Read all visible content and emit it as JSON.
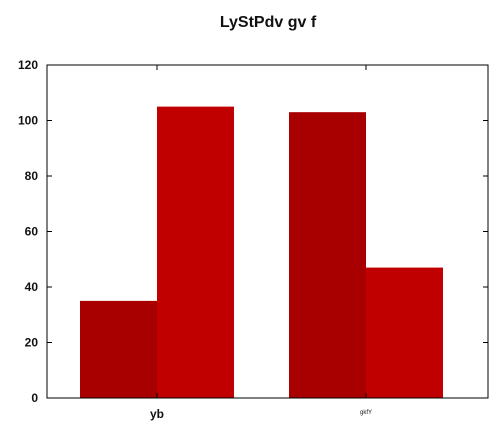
{
  "chart_data": {
    "type": "bar",
    "title": "LyStPdv gv f",
    "xlabel": "",
    "ylabel": "",
    "categories": [
      "yb",
      "gkfY"
    ],
    "series": [
      {
        "color": "#a80000",
        "values": [
          35,
          103
        ]
      },
      {
        "color": "#c00000",
        "values": [
          105,
          47
        ]
      }
    ],
    "ylim": [
      0,
      120
    ],
    "yticks": [
      0,
      20,
      40,
      60,
      80,
      100,
      120
    ],
    "grid": false,
    "legend": "none"
  }
}
